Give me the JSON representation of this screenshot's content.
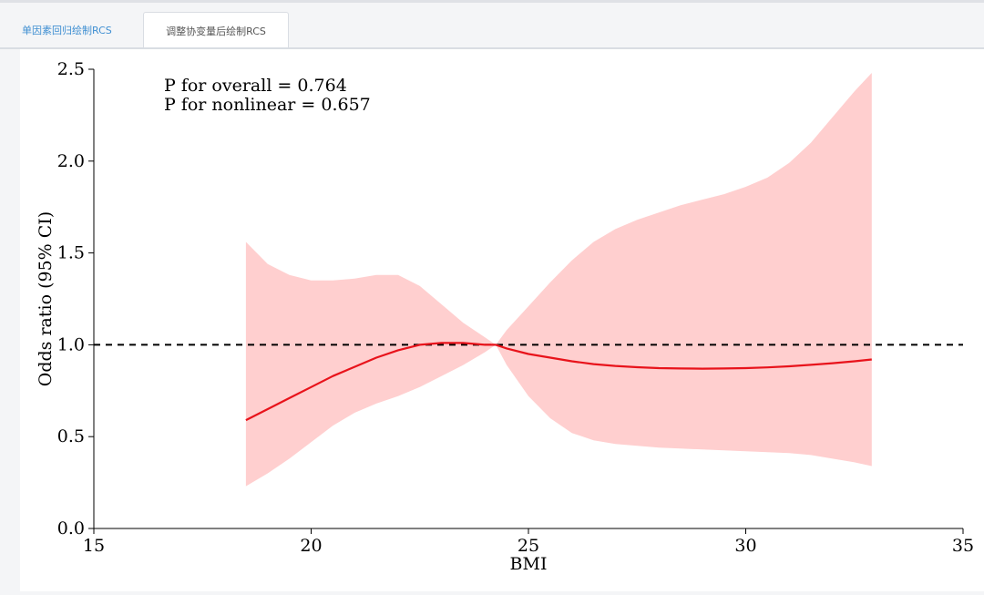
{
  "tabs": [
    {
      "label": "单因素回归绘制RCS",
      "active": false
    },
    {
      "label": "调整协变量后绘制RCS",
      "active": true
    }
  ],
  "chart_data": {
    "type": "line",
    "xlabel": "BMI",
    "ylabel": "Odds ratio (95% CI)",
    "xlim": [
      15,
      35
    ],
    "ylim": [
      0,
      2.5
    ],
    "xticks": [
      "15",
      "20",
      "25",
      "30",
      "35"
    ],
    "yticks": [
      "0.0",
      "0.5",
      "1.0",
      "1.5",
      "2.0",
      "2.5"
    ],
    "xtick_values": [
      15,
      20,
      25,
      30,
      35
    ],
    "ytick_values": [
      0,
      0.5,
      1.0,
      1.5,
      2.0,
      2.5
    ],
    "annotations": [
      "P for overall = 0.764",
      "P for nonlinear = 0.657"
    ],
    "reference_line": {
      "y": 1.0,
      "style": "dashed",
      "color": "#000000"
    },
    "colors": {
      "line": "#e8131b",
      "band": "#ffcfcf"
    },
    "series": [
      {
        "x": [
          18.5,
          19.0,
          19.5,
          20.0,
          20.5,
          21.0,
          21.5,
          22.0,
          22.5,
          23.0,
          23.5,
          24.0,
          24.25,
          24.5,
          25.0,
          25.5,
          26.0,
          26.5,
          27.0,
          27.5,
          28.0,
          28.5,
          29.0,
          29.5,
          30.0,
          30.5,
          31.0,
          31.5,
          32.0,
          32.5,
          32.9
        ],
        "y": [
          0.59,
          0.65,
          0.71,
          0.77,
          0.83,
          0.88,
          0.93,
          0.97,
          1.0,
          1.01,
          1.01,
          1.0,
          1.0,
          0.98,
          0.95,
          0.93,
          0.91,
          0.895,
          0.885,
          0.878,
          0.873,
          0.871,
          0.87,
          0.871,
          0.873,
          0.877,
          0.883,
          0.891,
          0.9,
          0.91,
          0.92
        ],
        "lower": [
          0.23,
          0.3,
          0.38,
          0.47,
          0.56,
          0.63,
          0.68,
          0.72,
          0.77,
          0.83,
          0.89,
          0.96,
          1.0,
          0.89,
          0.72,
          0.6,
          0.52,
          0.48,
          0.46,
          0.45,
          0.44,
          0.435,
          0.43,
          0.425,
          0.42,
          0.415,
          0.41,
          0.4,
          0.38,
          0.36,
          0.34
        ],
        "upper": [
          1.56,
          1.44,
          1.38,
          1.35,
          1.35,
          1.36,
          1.38,
          1.38,
          1.32,
          1.22,
          1.12,
          1.04,
          1.0,
          1.08,
          1.21,
          1.34,
          1.46,
          1.56,
          1.63,
          1.68,
          1.72,
          1.76,
          1.79,
          1.82,
          1.86,
          1.91,
          1.99,
          2.1,
          2.24,
          2.38,
          2.48
        ]
      }
    ]
  }
}
